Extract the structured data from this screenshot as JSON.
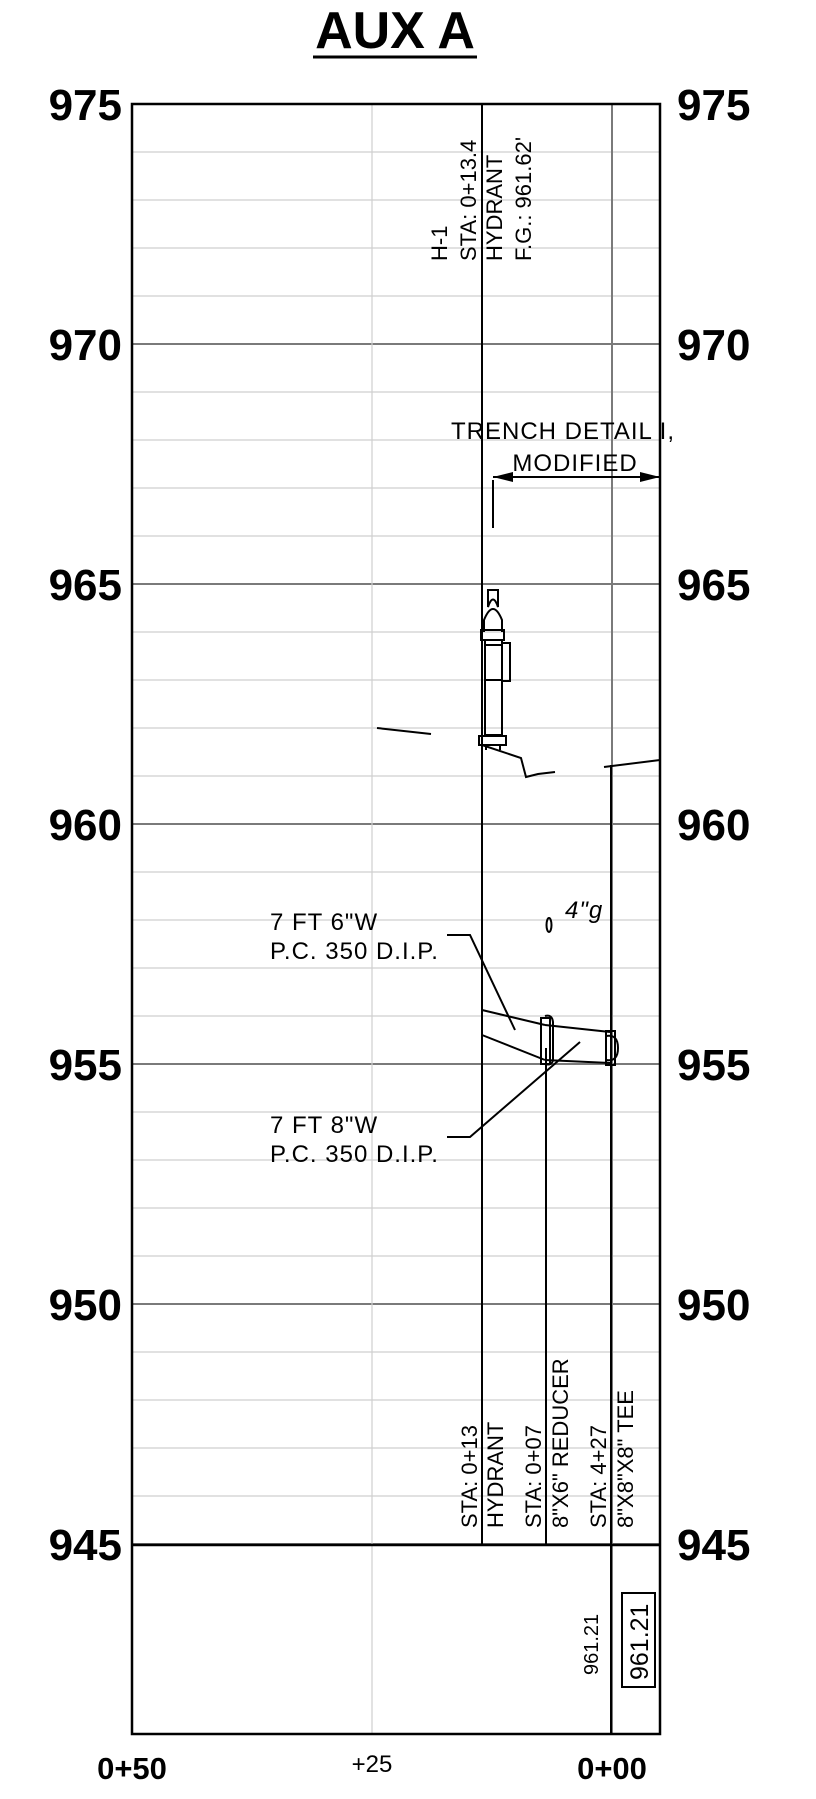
{
  "title": "AUX A",
  "elevation_labels": [
    "975",
    "970",
    "965",
    "960",
    "955",
    "950",
    "945"
  ],
  "station_labels": {
    "left": "0+50",
    "middle": "+25",
    "right": "0+00"
  },
  "top_callout": {
    "line1": "H-1",
    "line2": "STA: 0+13.4",
    "line3": "HYDRANT",
    "line4": "F.G.: 961.62'"
  },
  "trench_detail": {
    "line1": "TRENCH DETAIL I,",
    "line2": "MODIFIED"
  },
  "pipe_callouts": {
    "upper_line1": "7 FT 6\"W",
    "upper_line2": "P.C. 350 D.I.P.",
    "lower_line1": "7 FT 8\"W",
    "lower_line2": "P.C. 350 D.I.P.",
    "valve_size": "4\"g"
  },
  "bottom_callouts": {
    "hydrant_sta": "STA: 0+13",
    "hydrant_label": "HYDRANT",
    "reducer_sta": "STA: 0+07",
    "reducer_label": "8\"X6\" REDUCER",
    "tee_sta": "STA: 4+27",
    "tee_label": "8\"X8\"X8\" TEE"
  },
  "grade_values": {
    "plain": "961.21",
    "boxed": "961.21"
  }
}
